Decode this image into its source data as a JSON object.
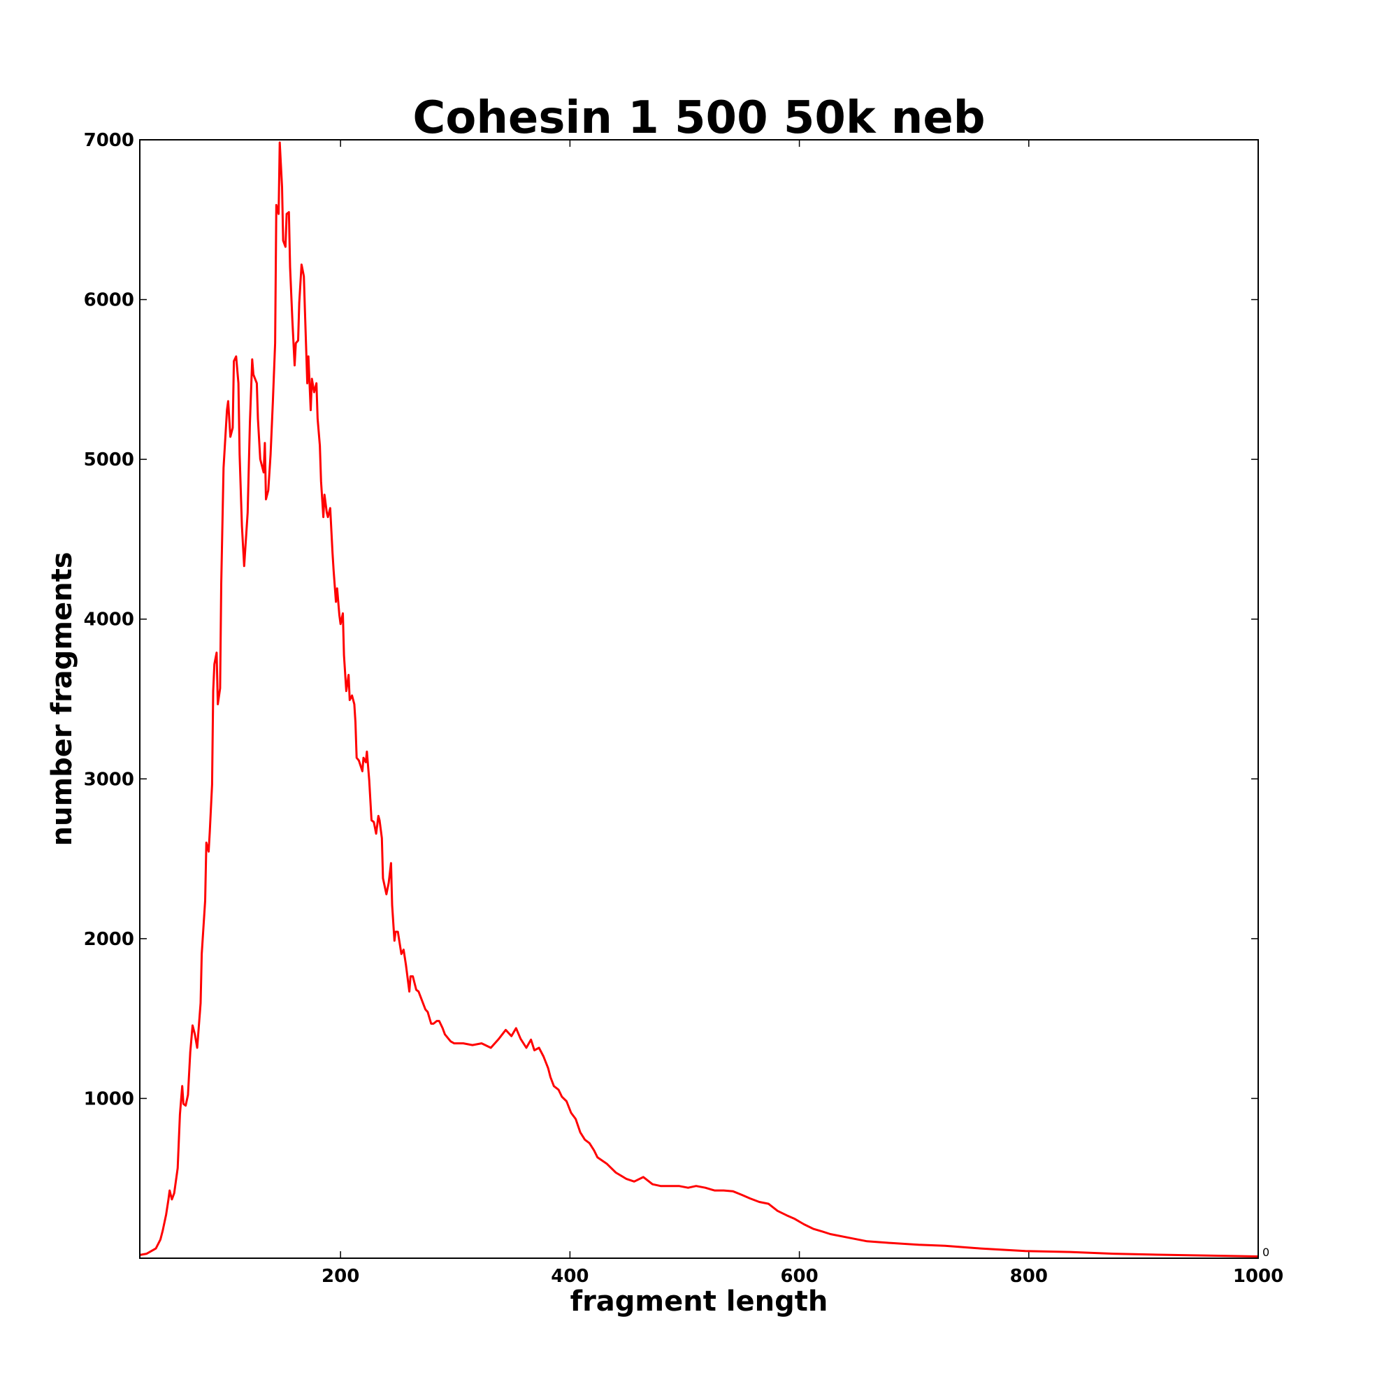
{
  "chart_data": {
    "type": "line",
    "title": "Cohesin 1 500 50k neb",
    "xlabel": "fragment length",
    "ylabel": "number fragments",
    "xlim": [
      25,
      1000
    ],
    "ylim": [
      0,
      7000
    ],
    "xticks": [
      200,
      400,
      600,
      800,
      1000
    ],
    "yticks": [
      1000,
      2000,
      3000,
      4000,
      5000,
      6000,
      7000
    ],
    "corner_label": "0",
    "grid": false,
    "series": [
      {
        "name": "fragments",
        "color": "#ff0000",
        "x": [
          25,
          31,
          39,
          43,
          45,
          48,
          50,
          51,
          53,
          55,
          58,
          60,
          62,
          63,
          65,
          67,
          69,
          71,
          73,
          75,
          78,
          79,
          82,
          83,
          85,
          86,
          88,
          89,
          90,
          92,
          93,
          95,
          96,
          98,
          101,
          102,
          104,
          106,
          107,
          109,
          111,
          112,
          114,
          116,
          119,
          121,
          123,
          124,
          127,
          128,
          130,
          131,
          133,
          134,
          135,
          137,
          139,
          141,
          143,
          144,
          146,
          147,
          149,
          150,
          152,
          153,
          155,
          156,
          158,
          160,
          161,
          163,
          164,
          166,
          168,
          169,
          171,
          172,
          174,
          175,
          177,
          179,
          180,
          182,
          183,
          185,
          186,
          188,
          189,
          191,
          193,
          194,
          196,
          197,
          199,
          200,
          202,
          203,
          205,
          207,
          208,
          210,
          212,
          213,
          214,
          216,
          219,
          220,
          222,
          223,
          225,
          227,
          229,
          231,
          233,
          234,
          236,
          237,
          240,
          242,
          244,
          245,
          247,
          248,
          250,
          253,
          255,
          257,
          260,
          261,
          263,
          266,
          268,
          271,
          274,
          276,
          279,
          281,
          284,
          286,
          289,
          291,
          296,
          299,
          307,
          315,
          323,
          331,
          338,
          344,
          349,
          353,
          357,
          362,
          366,
          369,
          373,
          377,
          381,
          383,
          386,
          390,
          393,
          397,
          401,
          405,
          409,
          413,
          417,
          421,
          424,
          432,
          440,
          449,
          456,
          464,
          472,
          479,
          487,
          495,
          503,
          510,
          518,
          526,
          534,
          542,
          550,
          557,
          565,
          573,
          581,
          589,
          596,
          604,
          612,
          620,
          627,
          643,
          659,
          680,
          704,
          727,
          758,
          797,
          836,
          874,
          913,
          952,
          1000
        ],
        "y": [
          20,
          28,
          61,
          117,
          173,
          274,
          368,
          424,
          368,
          407,
          564,
          899,
          1077,
          966,
          955,
          1022,
          1290,
          1457,
          1401,
          1317,
          1597,
          1904,
          2238,
          2601,
          2545,
          2668,
          2964,
          3550,
          3718,
          3790,
          3467,
          3567,
          4220,
          4946,
          5308,
          5364,
          5141,
          5197,
          5615,
          5644,
          5476,
          5030,
          4583,
          4332,
          4667,
          5225,
          5626,
          5531,
          5476,
          5253,
          5001,
          4974,
          4918,
          5102,
          4750,
          4806,
          5030,
          5364,
          5727,
          6592,
          6536,
          6983,
          6704,
          6369,
          6330,
          6536,
          6547,
          6202,
          5867,
          5588,
          5727,
          5744,
          5979,
          6219,
          6146,
          5923,
          5476,
          5644,
          5308,
          5504,
          5420,
          5476,
          5253,
          5086,
          4862,
          4639,
          4779,
          4667,
          4639,
          4695,
          4415,
          4303,
          4108,
          4192,
          4025,
          3969,
          4036,
          3774,
          3550,
          3651,
          3494,
          3522,
          3467,
          3355,
          3132,
          3115,
          3048,
          3132,
          3104,
          3171,
          2992,
          2741,
          2730,
          2657,
          2768,
          2741,
          2629,
          2378,
          2278,
          2350,
          2473,
          2210,
          1987,
          2043,
          2043,
          1904,
          1931,
          1837,
          1669,
          1764,
          1764,
          1680,
          1669,
          1613,
          1557,
          1541,
          1468,
          1468,
          1485,
          1485,
          1440,
          1401,
          1357,
          1345,
          1345,
          1334,
          1345,
          1317,
          1373,
          1429,
          1390,
          1440,
          1373,
          1317,
          1368,
          1301,
          1317,
          1262,
          1189,
          1133,
          1077,
          1055,
          1010,
          982,
          910,
          871,
          787,
          742,
          720,
          675,
          631,
          592,
          536,
          497,
          480,
          508,
          463,
          452,
          452,
          452,
          441,
          452,
          441,
          424,
          424,
          419,
          396,
          374,
          352,
          341,
          296,
          268,
          246,
          212,
          184,
          167,
          151,
          128,
          106,
          95,
          84,
          78,
          61,
          45,
          39,
          28,
          22,
          17,
          11
        ]
      }
    ]
  }
}
